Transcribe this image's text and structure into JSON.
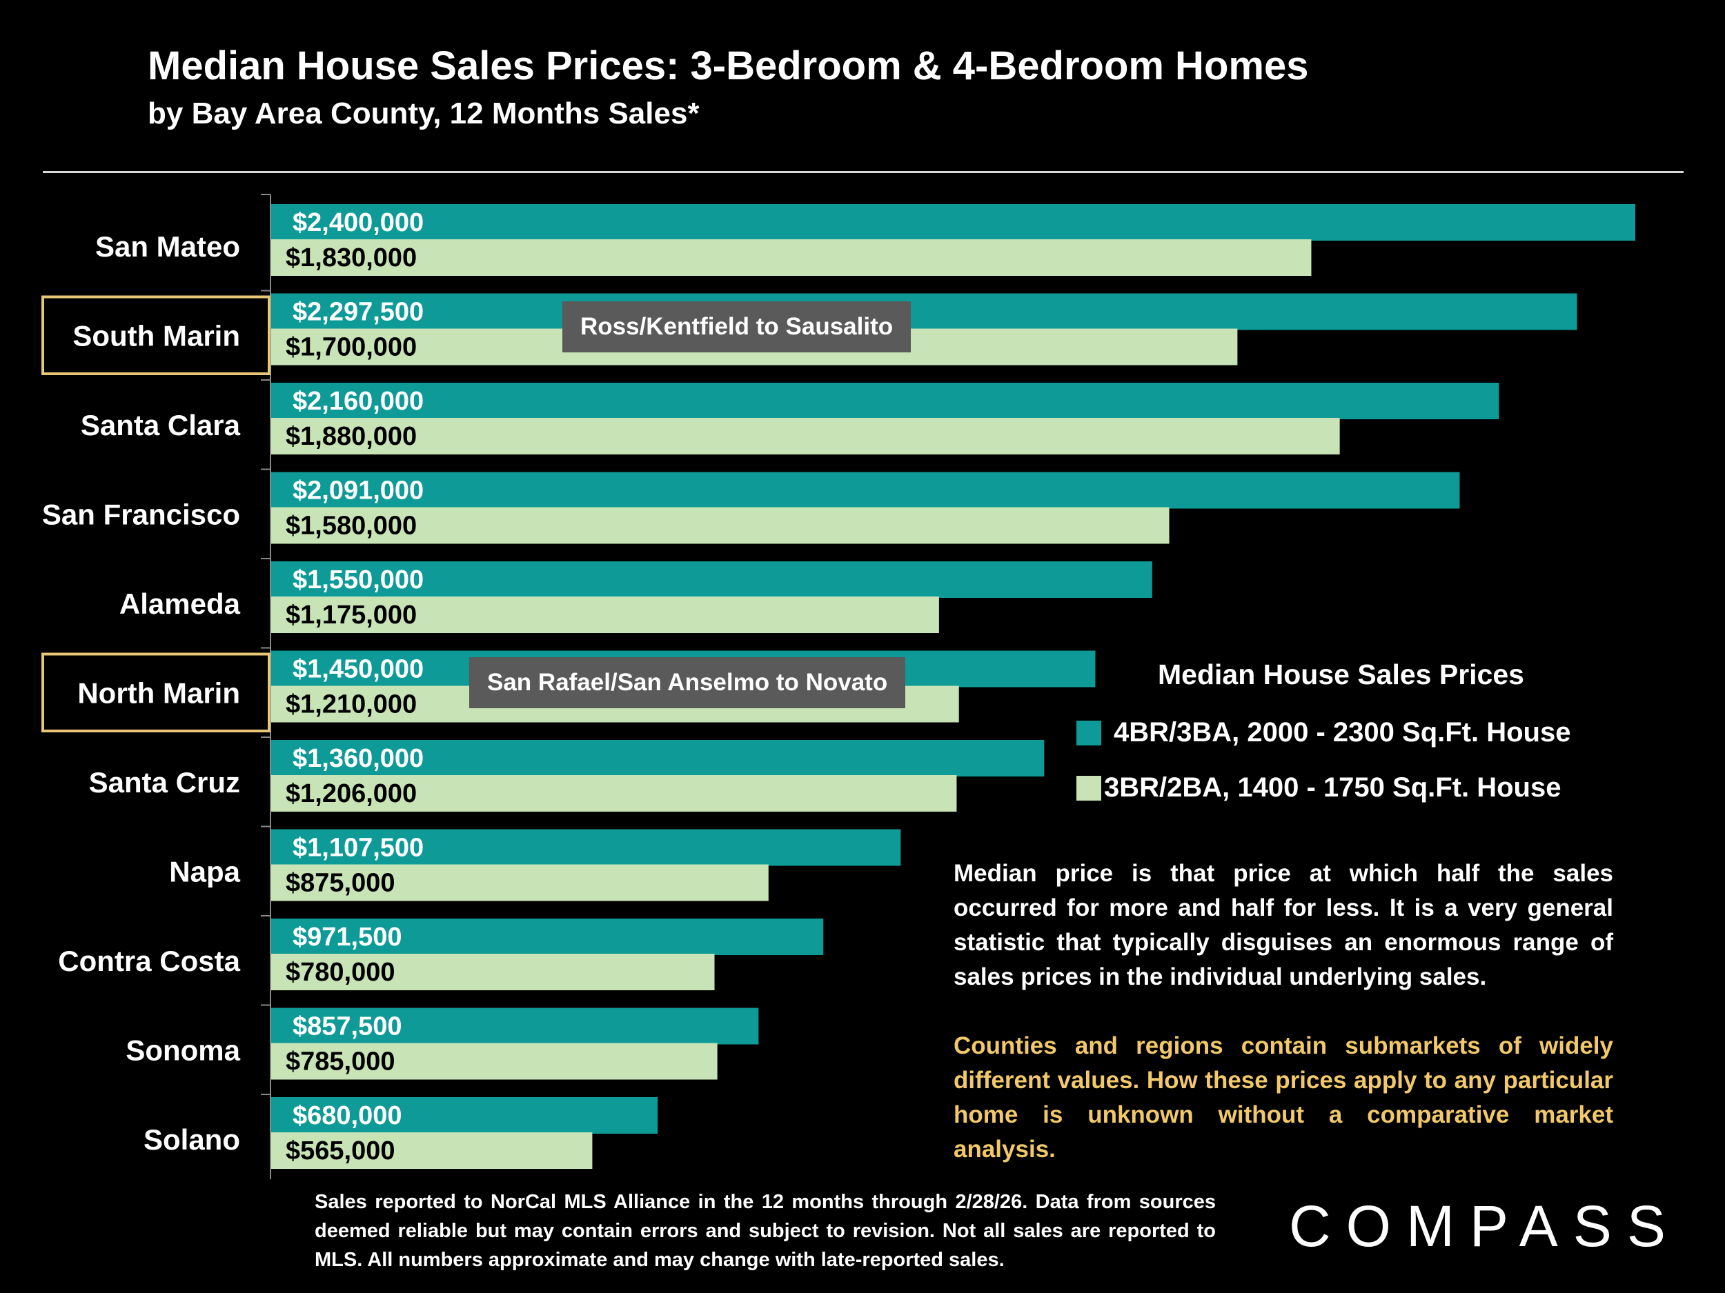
{
  "title": "Median House Sales Prices: 3-Bedroom & 4-Bedroom Homes",
  "subtitle": "by Bay Area County, 12 Months Sales*",
  "chart_data": {
    "type": "bar",
    "orientation": "horizontal",
    "title": "Median House Sales Prices",
    "categories": [
      "San Mateo",
      "South Marin",
      "Santa Clara",
      "San Francisco",
      "Alameda",
      "North Marin",
      "Santa Cruz",
      "Napa",
      "Contra Costa",
      "Sonoma",
      "Solano"
    ],
    "series": [
      {
        "name": "4BR/3BA, 2000 - 2300 Sq.Ft. House",
        "color": "#0e9a96",
        "label_color": "#ffffff",
        "values": [
          2400000,
          2297500,
          2160000,
          2091000,
          1550000,
          1450000,
          1360000,
          1107500,
          971500,
          857500,
          680000
        ],
        "labels": [
          "$2,400,000",
          "$2,297,500",
          "$2,160,000",
          "$2,091,000",
          "$1,550,000",
          "$1,450,000",
          "$1,360,000",
          "$1,107,500",
          "$971,500",
          "$857,500",
          "$680,000"
        ]
      },
      {
        "name": "3BR/2BA, 1400 - 1750 Sq.Ft. House",
        "color": "#c8e3b6",
        "label_color": "#000000",
        "values": [
          1830000,
          1700000,
          1880000,
          1580000,
          1175000,
          1210000,
          1206000,
          875000,
          780000,
          785000,
          565000
        ],
        "labels": [
          "$1,830,000",
          "$1,700,000",
          "$1,880,000",
          "$1,580,000",
          "$1,175,000",
          "$1,210,000",
          "$1,206,000",
          "$875,000",
          "$780,000",
          "$785,000",
          "$565,000"
        ]
      }
    ],
    "xlim": [
      0,
      2400000
    ],
    "highlighted_categories": [
      "South Marin",
      "North Marin"
    ],
    "annotations": [
      {
        "category": "South Marin",
        "text": "Ross/Kentfield to Sausalito"
      },
      {
        "category": "North Marin",
        "text": "San Rafael/San Anselmo to Novato"
      }
    ],
    "legend_title": "Median House Sales Prices",
    "legend_position": "right"
  },
  "notes": {
    "median": "Median price is that price at which half the sales occurred for more and half for less. It is a very general statistic that typically disguises an enormous range of sales prices in the individual underlying sales.",
    "submarkets": "Counties and regions contain submarkets of widely different values. How these prices apply to any particular home is unknown without a comparative market analysis."
  },
  "footnote": "Sales reported to NorCal MLS Alliance in the 12 months through 2/28/26. Data from sources deemed reliable but may contain errors and subject to revision. Not all sales are reported to MLS. All numbers approximate and may change with late-reported sales.",
  "logo": "COMPASS"
}
